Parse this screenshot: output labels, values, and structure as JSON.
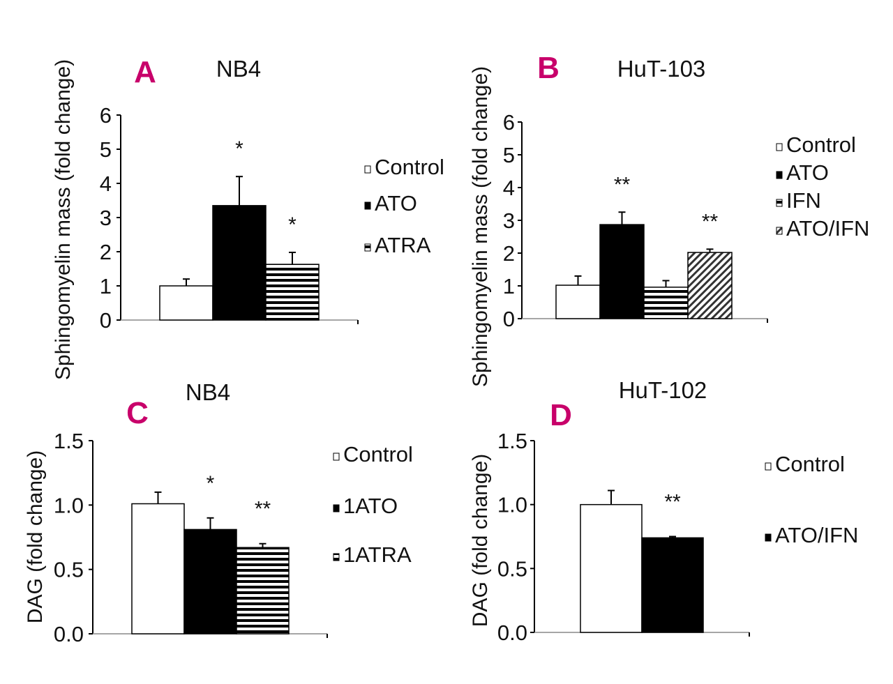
{
  "accent_color": "#c8006a",
  "chart_data": [
    {
      "type": "bar",
      "panel": "A",
      "title": "NB4",
      "ylabel": "Sphingomyelin mass (fold change)",
      "ylim": [
        0,
        6
      ],
      "yticks": [
        "0",
        "1",
        "2",
        "3",
        "4",
        "5",
        "6"
      ],
      "categories": [
        "Control",
        "ATO",
        "ATRA"
      ],
      "legend": [
        "Control",
        "ATO",
        "ATRA"
      ],
      "patterns": [
        "white",
        "black",
        "hstripe"
      ],
      "values": [
        1.0,
        3.35,
        1.63
      ],
      "errors": [
        0.2,
        0.85,
        0.35
      ],
      "significance": [
        "",
        "*",
        "*"
      ],
      "legend_placement": "right"
    },
    {
      "type": "bar",
      "panel": "B",
      "title": "HuT-103",
      "ylabel": "Sphingomyelin mass (fold change)",
      "ylim": [
        0,
        6
      ],
      "yticks": [
        "0",
        "1",
        "2",
        "3",
        "4",
        "5",
        "6"
      ],
      "categories": [
        "Control",
        "ATO",
        "IFN",
        "ATO/IFN"
      ],
      "legend": [
        "Control",
        "ATO",
        "IFN",
        "ATO/IFN"
      ],
      "patterns": [
        "white",
        "black",
        "hstripe",
        "diag"
      ],
      "values": [
        1.02,
        2.87,
        0.96,
        2.02
      ],
      "errors": [
        0.28,
        0.38,
        0.2,
        0.1
      ],
      "significance": [
        "",
        "**",
        "",
        "**"
      ],
      "legend_placement": "right"
    },
    {
      "type": "bar",
      "panel": "C",
      "title": "NB4",
      "ylabel": "DAG (fold change)",
      "ylim": [
        0,
        1.5
      ],
      "yticks": [
        "0.0",
        "0.5",
        "1.0",
        "1.5"
      ],
      "categories": [
        "Control",
        "ATO",
        "ATRA"
      ],
      "legend": [
        "Control",
        "1ATO",
        "1ATRA"
      ],
      "patterns": [
        "white",
        "black",
        "hstripe"
      ],
      "values": [
        1.01,
        0.81,
        0.67
      ],
      "errors": [
        0.09,
        0.09,
        0.03
      ],
      "significance": [
        "",
        "*",
        "**"
      ],
      "legend_placement": "right"
    },
    {
      "type": "bar",
      "panel": "D",
      "title": "HuT-102",
      "ylabel": "DAG (fold change)",
      "ylim": [
        0,
        1.5
      ],
      "yticks": [
        "0.0",
        "0.5",
        "1.0",
        "1.5"
      ],
      "categories": [
        "Control",
        "ATO/IFN"
      ],
      "legend": [
        "Control",
        "ATO/IFN"
      ],
      "patterns": [
        "white",
        "black"
      ],
      "values": [
        1.0,
        0.74
      ],
      "errors": [
        0.11,
        0.01
      ],
      "significance": [
        "",
        "**"
      ],
      "legend_placement": "right"
    }
  ]
}
